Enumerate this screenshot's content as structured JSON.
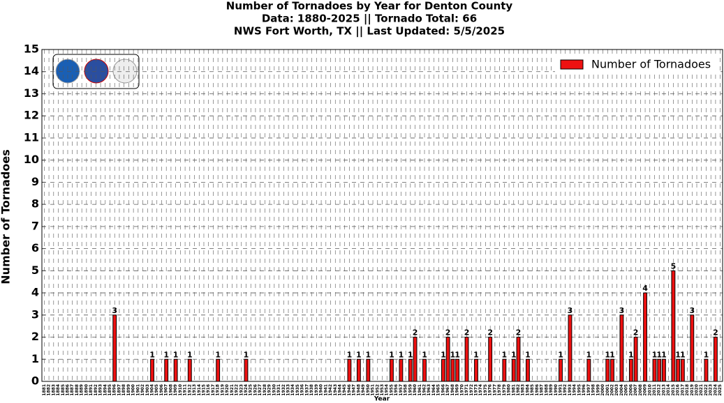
{
  "chart_data": {
    "type": "bar",
    "title": [
      "Number of Tornadoes by Year for Denton County",
      "Data: 1880-2025 || Tornado Total: 66",
      "NWS Fort Worth, TX || Last Updated: 5/5/2025"
    ],
    "xlabel": "Year",
    "ylabel": "Number of Tornadoes",
    "categories": [
      "1881",
      "1882",
      "1883",
      "1884",
      "1885",
      "1886",
      "1887",
      "1888",
      "1889",
      "1890",
      "1891",
      "1892",
      "1893",
      "1894",
      "1895",
      "1896",
      "1897",
      "1898",
      "1899",
      "1900",
      "1901",
      "1902",
      "1903",
      "1904",
      "1905",
      "1906",
      "1907",
      "1908",
      "1909",
      "1910",
      "1911",
      "1912",
      "1913",
      "1914",
      "1915",
      "1916",
      "1917",
      "1918",
      "1919",
      "1920",
      "1921",
      "1922",
      "1923",
      "1924",
      "1925",
      "1926",
      "1927",
      "1928",
      "1929",
      "1930",
      "1931",
      "1932",
      "1933",
      "1934",
      "1935",
      "1936",
      "1937",
      "1938",
      "1939",
      "1940",
      "1941",
      "1942",
      "1943",
      "1944",
      "1945",
      "1946",
      "1947",
      "1948",
      "1949",
      "1950",
      "1951",
      "1952",
      "1953",
      "1954",
      "1955",
      "1956",
      "1957",
      "1958",
      "1959",
      "1960",
      "1961",
      "1962",
      "1963",
      "1964",
      "1965",
      "1966",
      "1967",
      "1968",
      "1969",
      "1970",
      "1971",
      "1972",
      "1973",
      "1974",
      "1975",
      "1976",
      "1977",
      "1978",
      "1979",
      "1980",
      "1981",
      "1982",
      "1983",
      "1984",
      "1985",
      "1986",
      "1987",
      "1988",
      "1989",
      "1990",
      "1991",
      "1992",
      "1993",
      "1994",
      "1995",
      "1996",
      "1997",
      "1998",
      "1999",
      "2000",
      "2001",
      "2002",
      "2003",
      "2004",
      "2005",
      "2006",
      "2007",
      "2008",
      "2009",
      "2010",
      "2011",
      "2012",
      "2013",
      "2014",
      "2015",
      "2016",
      "2017",
      "2018",
      "2019",
      "2020",
      "2021",
      "2022",
      "2023",
      "2024",
      "2025"
    ],
    "series": [
      {
        "name": "Number of Tornadoes",
        "color": "#ee1111",
        "values": [
          0,
          0,
          0,
          0,
          0,
          0,
          0,
          0,
          0,
          0,
          0,
          0,
          0,
          0,
          0,
          3,
          0,
          0,
          0,
          0,
          0,
          0,
          0,
          1,
          0,
          0,
          1,
          0,
          1,
          0,
          0,
          1,
          0,
          0,
          0,
          0,
          0,
          1,
          0,
          0,
          0,
          0,
          0,
          1,
          0,
          0,
          0,
          0,
          0,
          0,
          0,
          0,
          0,
          0,
          0,
          0,
          0,
          0,
          0,
          0,
          0,
          0,
          0,
          0,
          0,
          1,
          0,
          1,
          0,
          1,
          0,
          0,
          0,
          0,
          1,
          0,
          1,
          0,
          1,
          2,
          0,
          1,
          0,
          0,
          0,
          1,
          2,
          1,
          1,
          0,
          2,
          0,
          1,
          0,
          0,
          2,
          0,
          0,
          1,
          0,
          1,
          2,
          0,
          1,
          0,
          0,
          0,
          0,
          0,
          0,
          1,
          0,
          3,
          0,
          0,
          0,
          1,
          0,
          0,
          0,
          1,
          1,
          0,
          3,
          0,
          1,
          2,
          0,
          4,
          0,
          1,
          1,
          1,
          0,
          5,
          1,
          1,
          0,
          3,
          0,
          0,
          1,
          0,
          2,
          0
        ]
      }
    ],
    "ylim": [
      0,
      15
    ],
    "yticks": [
      0,
      1,
      2,
      3,
      4,
      5,
      6,
      7,
      8,
      9,
      10,
      11,
      12,
      13,
      14,
      15
    ],
    "grid": true,
    "legend": "upper right"
  }
}
